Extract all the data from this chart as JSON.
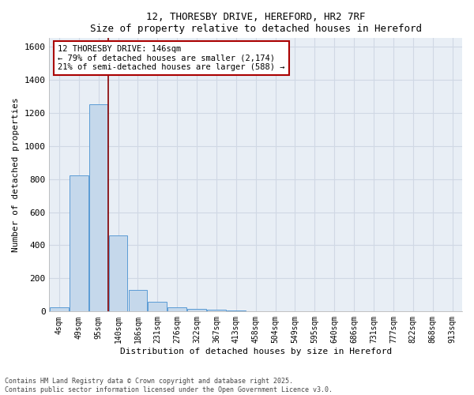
{
  "title": "12, THORESBY DRIVE, HEREFORD, HR2 7RF",
  "subtitle": "Size of property relative to detached houses in Hereford",
  "xlabel": "Distribution of detached houses by size in Hereford",
  "ylabel": "Number of detached properties",
  "bar_color": "#c5d8eb",
  "bar_edge_color": "#5b9bd5",
  "background_color": "#e8eef5",
  "grid_color": "#d0d8e4",
  "annotation_box_color": "#aa0000",
  "vline_color": "#880000",
  "categories": [
    "4sqm",
    "49sqm",
    "95sqm",
    "140sqm",
    "186sqm",
    "231sqm",
    "276sqm",
    "322sqm",
    "367sqm",
    "413sqm",
    "458sqm",
    "504sqm",
    "549sqm",
    "595sqm",
    "640sqm",
    "686sqm",
    "731sqm",
    "777sqm",
    "822sqm",
    "868sqm",
    "913sqm"
  ],
  "values": [
    25,
    820,
    1250,
    460,
    130,
    60,
    25,
    15,
    10,
    8,
    0,
    0,
    0,
    0,
    0,
    0,
    0,
    0,
    0,
    0,
    0
  ],
  "ylim": [
    0,
    1650
  ],
  "yticks": [
    0,
    200,
    400,
    600,
    800,
    1000,
    1200,
    1400,
    1600
  ],
  "vline_position": 2.5,
  "annotation_text": "12 THORESBY DRIVE: 146sqm\n← 79% of detached houses are smaller (2,174)\n21% of semi-detached houses are larger (588) →",
  "footnote": "Contains HM Land Registry data © Crown copyright and database right 2025.\nContains public sector information licensed under the Open Government Licence v3.0.",
  "figsize": [
    6.0,
    5.0
  ],
  "dpi": 100
}
